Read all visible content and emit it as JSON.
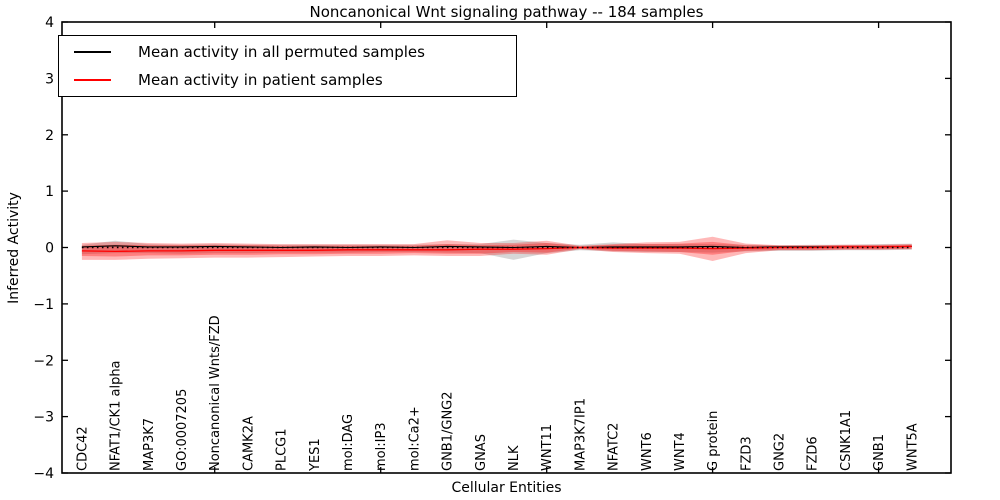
{
  "chart_data": {
    "type": "line",
    "title": "Noncanonical Wnt signaling pathway -- 184 samples",
    "xlabel": "Cellular Entities",
    "ylabel": "Inferred Activity",
    "ylim": [
      -4,
      4
    ],
    "yticks": [
      4,
      3,
      2,
      1,
      0,
      -1,
      -2,
      -3,
      -4
    ],
    "xlim": [
      0.4,
      27.18
    ],
    "unlabeled_major_xticks": [
      5,
      10,
      15,
      20,
      25
    ],
    "grid": false,
    "legend_position": "upper left",
    "x": [
      1,
      2,
      3,
      4,
      5,
      6,
      7,
      8,
      9,
      10,
      11,
      12,
      13,
      14,
      15,
      16,
      17,
      18,
      19,
      20,
      21,
      22,
      23,
      24,
      25,
      26
    ],
    "categories": [
      "CDC42",
      "NFAT1/CK1 alpha",
      "MAP3K7",
      "GO:0007205",
      "Noncanonical Wnts/FZD",
      "CAMK2A",
      "PLCG1",
      "YES1",
      "mol:DAG",
      "mol:IP3",
      "mol:Ca2+",
      "GNB1/GNG2",
      "GNAS",
      "NLK",
      "WNT11",
      "MAP3K7IP1",
      "NFATC2",
      "WNT6",
      "WNT4",
      "G protein",
      "FZD3",
      "GNG2",
      "FZD6",
      "CSNK1A1",
      "GNB1",
      "WNT5A"
    ],
    "series": [
      {
        "name": "Mean activity in all permuted samples",
        "color": "#000000",
        "style": "solid",
        "values": [
          0.01,
          0.03,
          0.01,
          0.01,
          0.02,
          0.01,
          0.0,
          0.01,
          0.0,
          0.01,
          0.0,
          0.02,
          0.01,
          0.0,
          0.02,
          0.0,
          0.01,
          0.01,
          0.01,
          0.02,
          0.0,
          0.01,
          0.01,
          0.01,
          0.01,
          0.02
        ]
      },
      {
        "name": "Mean activity in patient samples",
        "color": "#ff0000",
        "style": "solid",
        "values": [
          -0.06,
          -0.07,
          -0.06,
          -0.06,
          -0.05,
          -0.05,
          -0.05,
          -0.05,
          -0.04,
          -0.04,
          -0.04,
          -0.04,
          -0.03,
          -0.03,
          -0.02,
          0.0,
          -0.01,
          -0.01,
          -0.01,
          -0.02,
          -0.01,
          0.0,
          0.0,
          0.01,
          0.01,
          0.02
        ]
      },
      {
        "name": "zero reference",
        "color": "#000000",
        "style": "dotted",
        "values": [
          0,
          0,
          0,
          0,
          0,
          0,
          0,
          0,
          0,
          0,
          0,
          0,
          0,
          0,
          0,
          0,
          0,
          0,
          0,
          0,
          0,
          0,
          0,
          0,
          0,
          0
        ]
      }
    ],
    "bands": [
      {
        "name": "permuted samples spread",
        "color": "#000000",
        "alpha": 0.16,
        "upper": [
          0.05,
          0.12,
          0.06,
          0.05,
          0.06,
          0.05,
          0.05,
          0.05,
          0.05,
          0.05,
          0.05,
          0.06,
          0.06,
          0.14,
          0.08,
          0.05,
          0.09,
          0.06,
          0.06,
          0.06,
          0.05,
          0.04,
          0.05,
          0.05,
          0.06,
          0.07
        ],
        "lower": [
          -0.12,
          -0.1,
          -0.1,
          -0.11,
          -0.1,
          -0.1,
          -0.09,
          -0.09,
          -0.09,
          -0.08,
          -0.08,
          -0.09,
          -0.1,
          -0.22,
          -0.1,
          -0.05,
          -0.07,
          -0.08,
          -0.08,
          -0.09,
          -0.07,
          -0.06,
          -0.06,
          -0.05,
          -0.05,
          -0.04
        ]
      },
      {
        "name": "patient samples spread (outer)",
        "color": "#ff0000",
        "alpha": 0.28,
        "upper": [
          0.08,
          0.1,
          0.08,
          0.07,
          0.08,
          0.07,
          0.06,
          0.06,
          0.06,
          0.06,
          0.06,
          0.13,
          0.08,
          0.08,
          0.12,
          0.03,
          0.06,
          0.09,
          0.1,
          0.19,
          0.07,
          0.04,
          0.04,
          0.05,
          0.05,
          0.06
        ],
        "lower": [
          -0.22,
          -0.22,
          -0.2,
          -0.19,
          -0.18,
          -0.18,
          -0.17,
          -0.16,
          -0.15,
          -0.15,
          -0.14,
          -0.15,
          -0.15,
          -0.11,
          -0.13,
          -0.03,
          -0.08,
          -0.1,
          -0.11,
          -0.24,
          -0.1,
          -0.05,
          -0.05,
          -0.04,
          -0.04,
          -0.03
        ],
        "alpha_note": "semi-transparent red fill"
      },
      {
        "name": "patient samples spread (inner)",
        "color": "#ff0000",
        "alpha": 0.3,
        "upper": [
          0.03,
          0.05,
          0.04,
          0.04,
          0.04,
          0.04,
          0.03,
          0.03,
          0.03,
          0.03,
          0.03,
          0.06,
          0.04,
          0.05,
          0.08,
          0.02,
          0.05,
          0.06,
          0.07,
          0.1,
          0.04,
          0.03,
          0.03,
          0.04,
          0.04,
          0.05
        ],
        "lower": [
          -0.15,
          -0.16,
          -0.14,
          -0.14,
          -0.13,
          -0.13,
          -0.12,
          -0.12,
          -0.11,
          -0.11,
          -0.1,
          -0.11,
          -0.11,
          -0.08,
          -0.09,
          -0.02,
          -0.06,
          -0.07,
          -0.08,
          -0.13,
          -0.06,
          -0.04,
          -0.04,
          -0.03,
          -0.03,
          -0.02
        ]
      }
    ]
  }
}
